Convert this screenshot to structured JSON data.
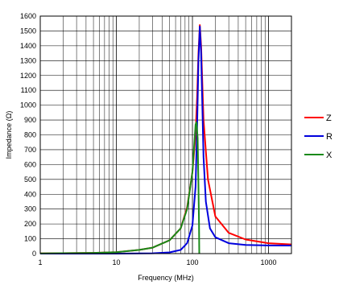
{
  "chart_data": {
    "type": "line",
    "title": "",
    "xlabel": "Frequency (MHz)",
    "ylabel": "Impedance (Ω)",
    "x_scale": "log",
    "xlim": [
      1,
      2000
    ],
    "ylim": [
      0,
      1600
    ],
    "grid": true,
    "legend_position": "right",
    "x_ticks": [
      {
        "value": 1,
        "label": "1"
      },
      {
        "value": 10,
        "label": "10"
      },
      {
        "value": 100,
        "label": "100"
      },
      {
        "value": 1000,
        "label": "1000"
      }
    ],
    "y_ticks": [
      0,
      100,
      200,
      300,
      400,
      500,
      600,
      700,
      800,
      900,
      1000,
      1100,
      1200,
      1300,
      1400,
      1500,
      1600
    ],
    "series": [
      {
        "name": "Z",
        "color": "#ff0000",
        "points": [
          [
            1,
            1
          ],
          [
            5,
            5
          ],
          [
            10,
            10
          ],
          [
            20,
            25
          ],
          [
            30,
            40
          ],
          [
            50,
            90
          ],
          [
            70,
            170
          ],
          [
            85,
            310
          ],
          [
            100,
            550
          ],
          [
            110,
            800
          ],
          [
            115,
            1050
          ],
          [
            120,
            1350
          ],
          [
            125,
            1540
          ],
          [
            130,
            1400
          ],
          [
            140,
            900
          ],
          [
            160,
            500
          ],
          [
            200,
            250
          ],
          [
            300,
            140
          ],
          [
            500,
            95
          ],
          [
            1000,
            70
          ],
          [
            2000,
            62
          ]
        ]
      },
      {
        "name": "R",
        "color": "#0000dd",
        "points": [
          [
            1,
            0
          ],
          [
            10,
            0
          ],
          [
            30,
            2
          ],
          [
            50,
            8
          ],
          [
            70,
            25
          ],
          [
            85,
            70
          ],
          [
            100,
            190
          ],
          [
            110,
            450
          ],
          [
            115,
            850
          ],
          [
            120,
            1300
          ],
          [
            125,
            1530
          ],
          [
            130,
            1350
          ],
          [
            140,
            650
          ],
          [
            150,
            350
          ],
          [
            170,
            170
          ],
          [
            200,
            110
          ],
          [
            300,
            70
          ],
          [
            500,
            58
          ],
          [
            1000,
            55
          ],
          [
            2000,
            54
          ]
        ]
      },
      {
        "name": "X",
        "color": "#1a8a1a",
        "points": [
          [
            1,
            1
          ],
          [
            5,
            5
          ],
          [
            10,
            10
          ],
          [
            20,
            25
          ],
          [
            30,
            40
          ],
          [
            50,
            90
          ],
          [
            70,
            170
          ],
          [
            85,
            300
          ],
          [
            100,
            550
          ],
          [
            110,
            870
          ],
          [
            113,
            885
          ],
          [
            117,
            780
          ],
          [
            120,
            450
          ],
          [
            122,
            200
          ],
          [
            123,
            0
          ]
        ]
      }
    ]
  }
}
